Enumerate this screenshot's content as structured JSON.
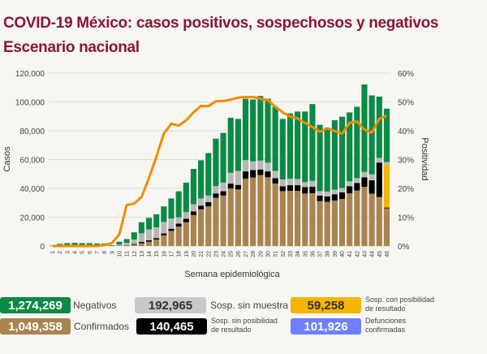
{
  "title": "COVID-19 México: casos positivos, sospechosos y negativos",
  "subtitle": "Escenario nacional",
  "chart_data": {
    "type": "bar",
    "stacked": true,
    "xlabel": "Semana epidemiológica",
    "ylabel": "Casos",
    "y2label": "Positividad",
    "ylim": [
      0,
      120000
    ],
    "y2lim": [
      0,
      60
    ],
    "yticks": [
      "0",
      "20,000",
      "40,000",
      "60,000",
      "80,000",
      "100,000",
      "120,000"
    ],
    "y2ticks": [
      "0%",
      "10%",
      "20%",
      "30%",
      "40%",
      "50%",
      "60%"
    ],
    "grid": true,
    "categories": [
      "1",
      "2",
      "3",
      "4",
      "5",
      "6",
      "7",
      "8",
      "9",
      "10",
      "11",
      "12",
      "13",
      "14",
      "15",
      "16",
      "17",
      "18",
      "19",
      "20",
      "21",
      "22",
      "23",
      "24",
      "25",
      "26",
      "27",
      "28",
      "29",
      "30",
      "31",
      "32",
      "33",
      "34",
      "35",
      "36",
      "37",
      "38",
      "39",
      "40",
      "41",
      "42",
      "43",
      "44",
      "45",
      "46"
    ],
    "series": [
      {
        "name": "Confirmados",
        "color": "#a98450",
        "values": [
          0,
          0,
          0,
          0,
          0,
          0,
          0,
          0,
          0,
          200,
          500,
          1000,
          2000,
          3000,
          4500,
          7500,
          10500,
          13500,
          16500,
          21500,
          25500,
          27500,
          33500,
          35000,
          40000,
          39300,
          46700,
          47500,
          49300,
          47700,
          43400,
          38100,
          38300,
          38300,
          36400,
          36600,
          31200,
          30700,
          31600,
          32700,
          36600,
          38500,
          41100,
          36300,
          34000,
          26200
        ]
      },
      {
        "name": "Sosp. sin posibilidad de resultado",
        "color": "#000000",
        "values": [
          0,
          0,
          0,
          0,
          0,
          0,
          0,
          0,
          0,
          100,
          200,
          500,
          800,
          1000,
          1000,
          1200,
          1500,
          2000,
          2500,
          2500,
          2500,
          3000,
          3000,
          3000,
          3300,
          3100,
          5100,
          5200,
          3800,
          4100,
          3700,
          3400,
          3900,
          3900,
          4500,
          4500,
          3800,
          3700,
          4300,
          4500,
          4900,
          5200,
          6600,
          9300,
          23900,
          500
        ]
      },
      {
        "name": "Sosp. con posibilidad de resultado",
        "color": "#f5b400",
        "values": [
          0,
          0,
          0,
          0,
          0,
          0,
          0,
          0,
          0,
          0,
          0,
          0,
          0,
          0,
          0,
          0,
          0,
          0,
          0,
          0,
          0,
          0,
          0,
          0,
          0,
          0,
          0,
          0,
          0,
          0,
          0,
          0,
          0,
          0,
          0,
          0,
          0,
          0,
          0,
          0,
          0,
          0,
          0,
          0,
          0,
          29700
        ]
      },
      {
        "name": "Sosp. sin muestra",
        "color": "#b8b8b8",
        "values": [
          0,
          0,
          0,
          0,
          0,
          0,
          0,
          0,
          100,
          700,
          1500,
          3000,
          6000,
          7500,
          7500,
          8000,
          7000,
          4500,
          4500,
          5000,
          5000,
          4500,
          5000,
          6000,
          7500,
          9700,
          7800,
          6000,
          6200,
          6000,
          5000,
          4700,
          4500,
          4300,
          3400,
          4100,
          3100,
          3400,
          3200,
          3000,
          3400,
          3400,
          3700,
          4100,
          3200,
          1900
        ]
      },
      {
        "name": "Negativos",
        "color": "#0b8a45",
        "values": [
          300,
          1500,
          2000,
          2200,
          2000,
          2000,
          1800,
          1800,
          500,
          2000,
          2600,
          5000,
          7700,
          8000,
          9000,
          10800,
          14000,
          18000,
          20500,
          24500,
          26500,
          29500,
          33000,
          34500,
          38200,
          36100,
          42600,
          43000,
          44800,
          44400,
          44500,
          42000,
          45300,
          46800,
          49000,
          53300,
          46000,
          44300,
          48200,
          49500,
          47800,
          49500,
          60700,
          54800,
          42600,
          37000
        ]
      }
    ],
    "line": {
      "name": "Positividad",
      "axis": "right",
      "unit": "%",
      "color": "#f08c00",
      "values": [
        0,
        0,
        0,
        0,
        0,
        0,
        0,
        0.3,
        1,
        4,
        14.2,
        14.7,
        17,
        23.6,
        31,
        39,
        42.4,
        41.8,
        43.6,
        46.4,
        48.6,
        48.5,
        50.2,
        50.3,
        50.8,
        51.5,
        51.7,
        51.7,
        51.1,
        50.6,
        48.3,
        46.4,
        44.9,
        44.3,
        42.7,
        41.3,
        39.6,
        40.8,
        39.9,
        39,
        42.7,
        43.2,
        40.4,
        39.4,
        44.1,
        45.2
      ]
    }
  },
  "legend": [
    {
      "value": "1,274,269",
      "label": "Negativos",
      "color": "#0b8a45",
      "text": "#ffffff"
    },
    {
      "value": "192,965",
      "label": "Sosp. sin muestra",
      "color": "#c8c8c8",
      "text": "#333333"
    },
    {
      "value": "59,258",
      "label1": "Sosp. con posibilidad",
      "label2": "de resultado",
      "color": "#f5b400",
      "text": "#333333"
    },
    {
      "value": "1,049,358",
      "label": "Confirmados",
      "color": "#a98450",
      "text": "#ffffff"
    },
    {
      "value": "140,465",
      "label1": "Sosp. sin posibilidad",
      "label2": "de resultado",
      "color": "#000000",
      "text": "#ffffff"
    },
    {
      "value": "101,926",
      "label1": "Defunciones",
      "label2": "confirmadas",
      "color": "#6f7fff",
      "text": "#ffffff"
    }
  ]
}
